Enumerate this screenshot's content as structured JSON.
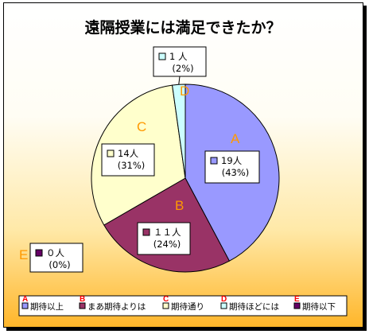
{
  "chart_data": {
    "type": "pie",
    "title": "遠隔授業には満足できたか？",
    "categories": [
      "A",
      "B",
      "C",
      "D",
      "E"
    ],
    "series": [
      {
        "values": [
          19,
          11,
          14,
          1,
          0
        ],
        "percent_labels": [
          "(43%)",
          "(24%)",
          "(31%)",
          "(2%)",
          "(0%)"
        ],
        "count_labels": [
          "19人",
          "１１人",
          "14人",
          "1 人",
          "０人"
        ]
      }
    ],
    "legend": {
      "placement": "bottom",
      "entries": [
        "期待以上",
        "まあ期待よりは",
        "期待通り",
        "期待ほどには",
        "期待以下"
      ]
    },
    "colors": [
      "#9999ff",
      "#993366",
      "#ffffcc",
      "#ccffff",
      "#660066"
    ],
    "letter_color": "#ff9900",
    "legend_letter_color": "#ff0000"
  }
}
